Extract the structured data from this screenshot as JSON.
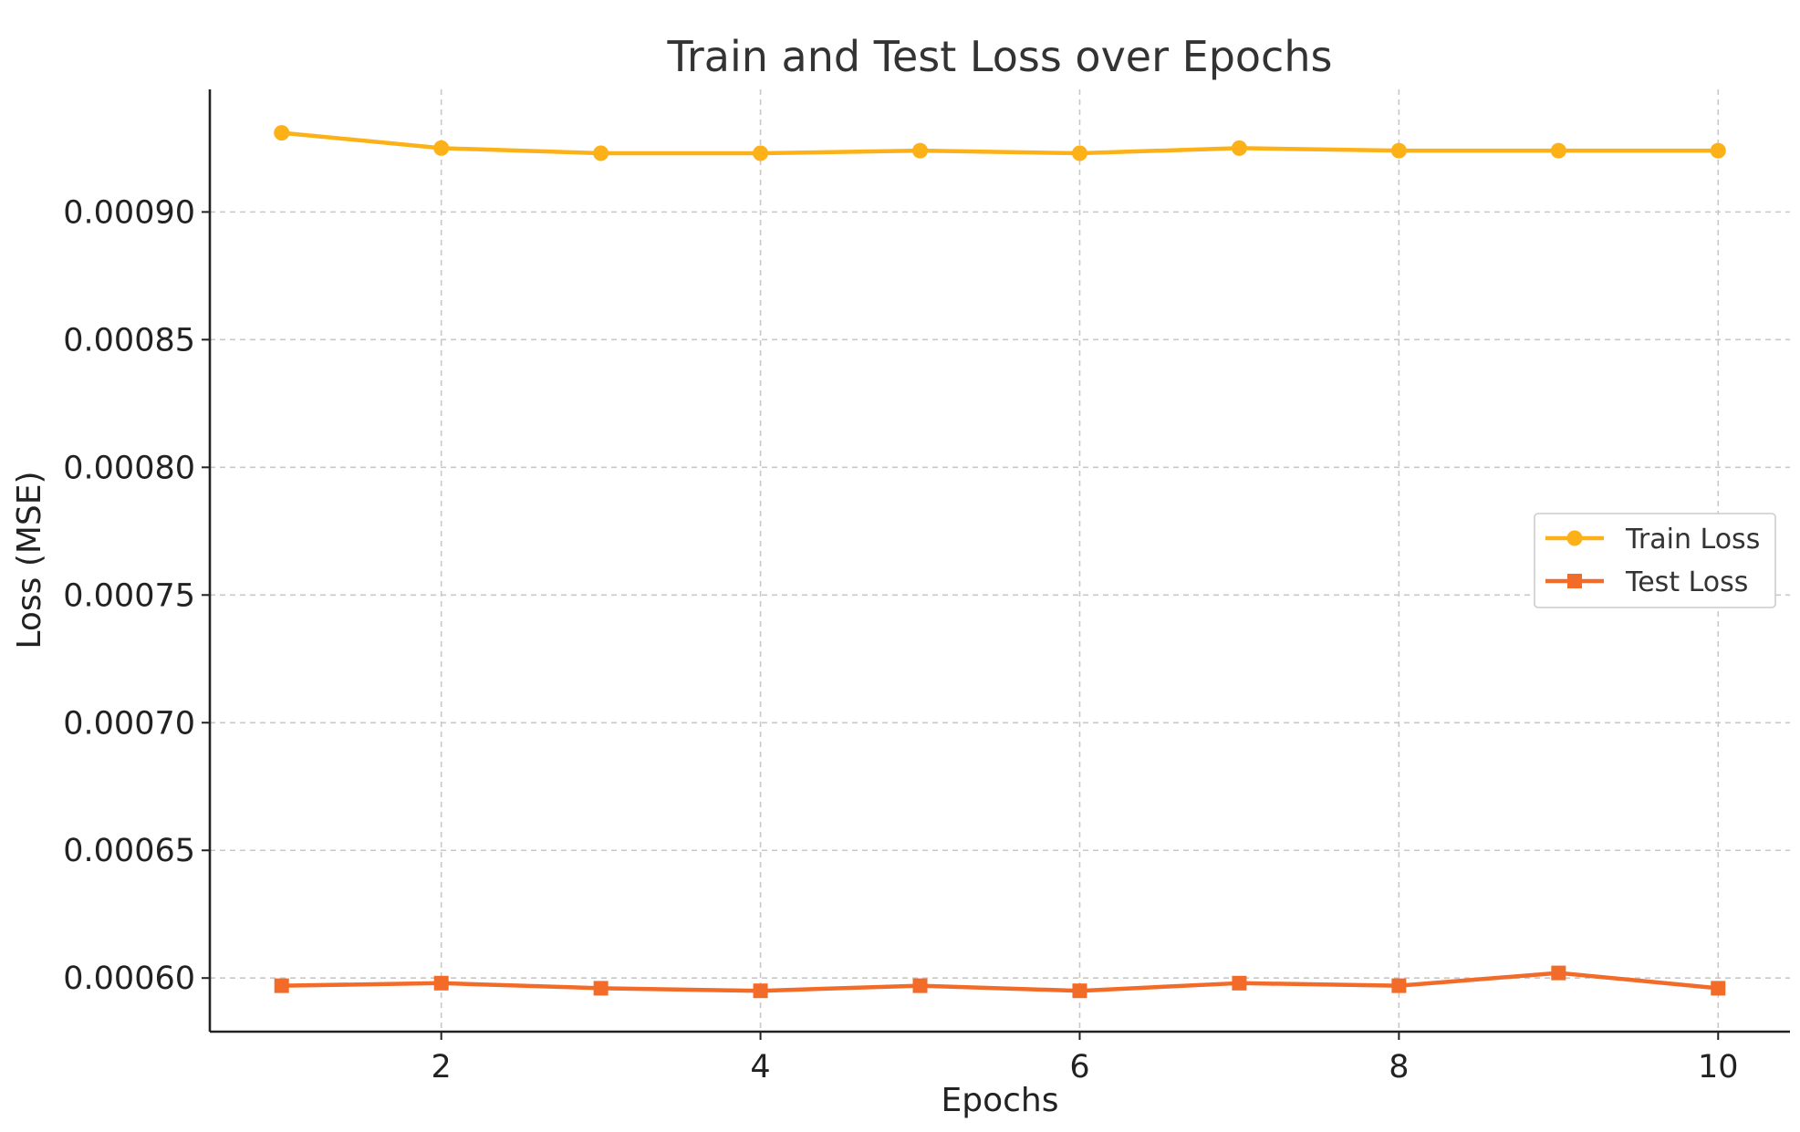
{
  "chart_data": {
    "type": "line",
    "title": "Train and Test Loss over Epochs",
    "xlabel": "Epochs",
    "ylabel": "Loss (MSE)",
    "x": [
      1,
      2,
      3,
      4,
      5,
      6,
      7,
      8,
      9,
      10
    ],
    "xlim": [
      0.55,
      10.45
    ],
    "ylim": [
      0.000579,
      0.000948
    ],
    "x_ticks": [
      2,
      4,
      6,
      8,
      10
    ],
    "x_tick_labels": [
      "2",
      "4",
      "6",
      "8",
      "10"
    ],
    "y_ticks": [
      0.0006,
      0.00065,
      0.0007,
      0.00075,
      0.0008,
      0.00085,
      0.0009
    ],
    "y_tick_labels": [
      "0.00060",
      "0.00065",
      "0.00070",
      "0.00075",
      "0.00080",
      "0.00085",
      "0.00090"
    ],
    "grid": true,
    "legend_position": "center-right",
    "series": [
      {
        "name": "Train Loss",
        "color": "#fbb117",
        "marker": "circle",
        "values": [
          0.000931,
          0.000925,
          0.000923,
          0.000923,
          0.000924,
          0.000923,
          0.000925,
          0.000924,
          0.000924,
          0.000924
        ]
      },
      {
        "name": "Test Loss",
        "color": "#f26b28",
        "marker": "square",
        "values": [
          0.000597,
          0.000598,
          0.000596,
          0.000595,
          0.000597,
          0.000595,
          0.000598,
          0.000597,
          0.000602,
          0.000596
        ]
      }
    ]
  }
}
